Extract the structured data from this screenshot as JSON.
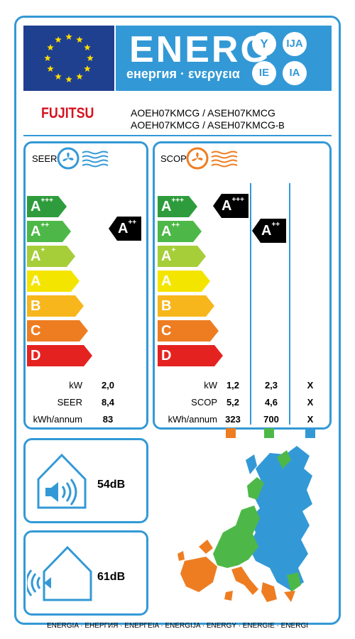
{
  "header": {
    "energy_word": "ENERG",
    "subtitle": "енергия · ενεργεια",
    "lang_badges": [
      "Y",
      "IJA",
      "IE",
      "IA"
    ],
    "brand": "FUJITSU",
    "model_line_1": "AOEH07KMCG / ASEH07KMCG",
    "model_line_2": "AOEH07KMCG / ASEH07KMCG",
    "model_line_2_suffix": "-B"
  },
  "scale_classes": [
    {
      "letter": "A",
      "sup": "+++",
      "color": "#2e9c3c"
    },
    {
      "letter": "A",
      "sup": "++",
      "color": "#4db848"
    },
    {
      "letter": "A",
      "sup": "+",
      "color": "#a6ce39"
    },
    {
      "letter": "A",
      "sup": "",
      "color": "#f4e500"
    },
    {
      "letter": "B",
      "sup": "",
      "color": "#f6b61c"
    },
    {
      "letter": "C",
      "sup": "",
      "color": "#ee7d22"
    },
    {
      "letter": "D",
      "sup": "",
      "color": "#e42320"
    }
  ],
  "seer": {
    "label": "SEER",
    "rating": {
      "letter": "A",
      "sup": "++"
    },
    "rows": [
      {
        "label": "kW",
        "value": "2,0"
      },
      {
        "label": "SEER",
        "value": "8,4"
      },
      {
        "label": "kWh/annum",
        "value": "83"
      }
    ]
  },
  "scop": {
    "label": "SCOP",
    "ratings": [
      {
        "letter": "A",
        "sup": "+++"
      },
      {
        "letter": "A",
        "sup": "++"
      }
    ],
    "rows": [
      {
        "label": "kW",
        "values": [
          "1,2",
          "2,3",
          "X"
        ]
      },
      {
        "label": "SCOP",
        "values": [
          "5,2",
          "4,6",
          "X"
        ]
      },
      {
        "label": "kWh/annum",
        "values": [
          "323",
          "700",
          "X"
        ]
      }
    ],
    "zone_colors": [
      "#ee7d22",
      "#4db848",
      "#3399d6"
    ]
  },
  "noise": {
    "indoor": "54dB",
    "outdoor": "61dB"
  },
  "footer": "ENERGIA · ЕНЕРГИЯ · ΕΝΕΡΓΕΙΑ · ENERGIJA · ENERGY · ENERGIE · ENERGI",
  "colors": {
    "accent": "#3399d6",
    "brand_red": "#d6121e",
    "eu_blue": "#1f3f8f",
    "star_yellow": "#ffdd00",
    "seer_icon": "#3399d6",
    "scop_icon": "#ee7d22"
  }
}
